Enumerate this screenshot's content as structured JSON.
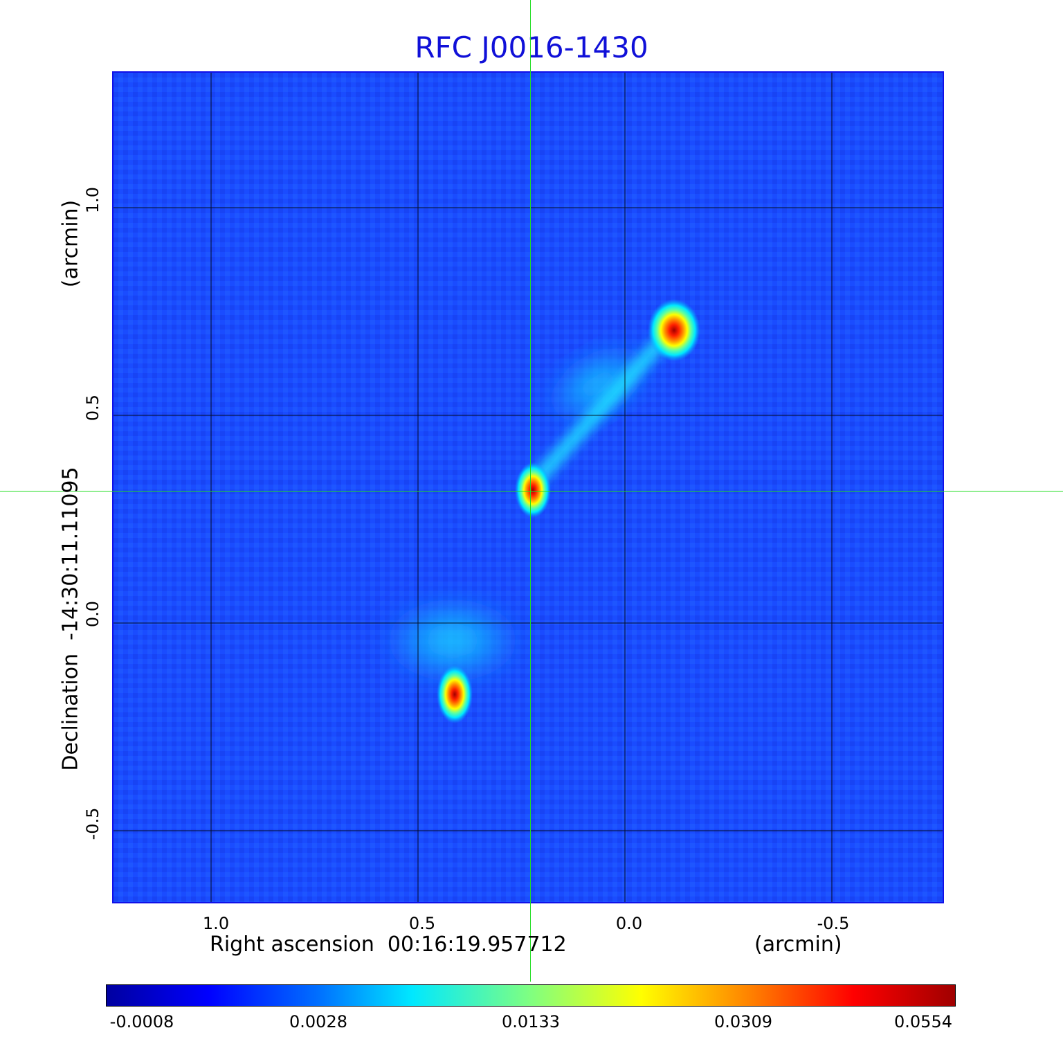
{
  "title": "RFC J0016-1430",
  "axes": {
    "x_label": "Right ascension  00:16:19.957712",
    "x_unit": "(arcmin)",
    "y_label": "Declination  -14:30:11.11095",
    "y_unit": "(arcmin)",
    "x_ticks": [
      "1.0",
      "0.5",
      "0.0",
      "-0.5"
    ],
    "y_ticks": [
      "1.0",
      "0.5",
      "0.0",
      "-0.5"
    ]
  },
  "colorbar": {
    "labels": [
      "-0.0008",
      "0.0028",
      "0.0133",
      "0.0309",
      "0.0554"
    ],
    "colormap": "jet"
  },
  "colors": {
    "title": "#1010d8",
    "crosshair": "#22dd22",
    "background_field": "#1a4cff"
  }
}
